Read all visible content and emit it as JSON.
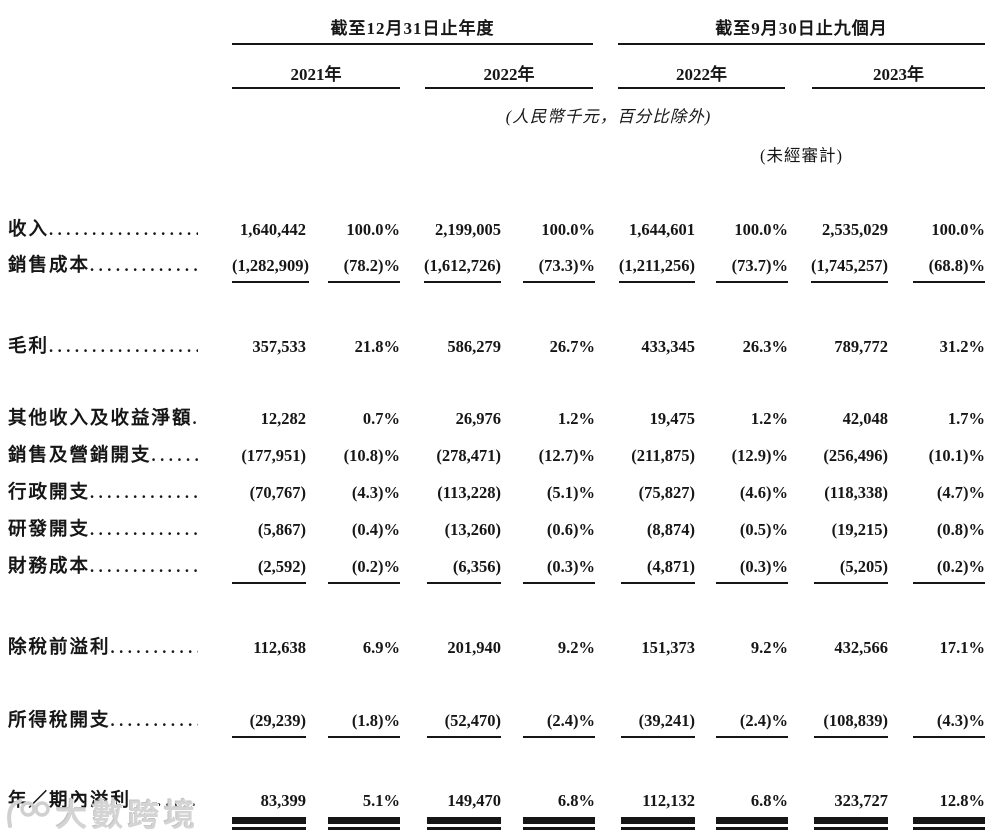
{
  "header": {
    "period_groups": [
      {
        "title": "截至12月31日止年度",
        "years": [
          "2021年",
          "2022年"
        ]
      },
      {
        "title": "截至9月30日止九個月",
        "years": [
          "2022年",
          "2023年"
        ]
      }
    ],
    "unit_note": "(人民幣千元，百分比除外)",
    "unaudited_note": "(未經審計)"
  },
  "table": {
    "leader_dots": "..........................................................",
    "rows": [
      {
        "label": "收入",
        "rule": "none",
        "values": [
          "1,640,442",
          "100.0%",
          "2,199,005",
          "100.0%",
          "1,644,601",
          "100.0%",
          "2,535,029",
          "100.0%"
        ]
      },
      {
        "label": "銷售成本",
        "rule": "single",
        "values": [
          "(1,282,909)",
          "(78.2)%",
          "(1,612,726)",
          "(73.3)%",
          "(1,211,256)",
          "(73.7)%",
          "(1,745,257)",
          "(68.8)%"
        ]
      },
      {
        "label": "毛利",
        "rule": "none",
        "values": [
          "357,533",
          "21.8%",
          "586,279",
          "26.7%",
          "433,345",
          "26.3%",
          "789,772",
          "31.2%"
        ]
      },
      {
        "label": "其他收入及收益淨額",
        "rule": "none",
        "values": [
          "12,282",
          "0.7%",
          "26,976",
          "1.2%",
          "19,475",
          "1.2%",
          "42,048",
          "1.7%"
        ]
      },
      {
        "label": "銷售及營銷開支",
        "rule": "none",
        "values": [
          "(177,951)",
          "(10.8)%",
          "(278,471)",
          "(12.7)%",
          "(211,875)",
          "(12.9)%",
          "(256,496)",
          "(10.1)%"
        ]
      },
      {
        "label": "行政開支",
        "rule": "none",
        "values": [
          "(70,767)",
          "(4.3)%",
          "(113,228)",
          "(5.1)%",
          "(75,827)",
          "(4.6)%",
          "(118,338)",
          "(4.7)%"
        ]
      },
      {
        "label": "研發開支",
        "rule": "none",
        "values": [
          "(5,867)",
          "(0.4)%",
          "(13,260)",
          "(0.6)%",
          "(8,874)",
          "(0.5)%",
          "(19,215)",
          "(0.8)%"
        ]
      },
      {
        "label": "財務成本",
        "rule": "single",
        "values": [
          "(2,592)",
          "(0.2)%",
          "(6,356)",
          "(0.3)%",
          "(4,871)",
          "(0.3)%",
          "(5,205)",
          "(0.2)%"
        ]
      },
      {
        "label": "除稅前溢利",
        "rule": "none",
        "values": [
          "112,638",
          "6.9%",
          "201,940",
          "9.2%",
          "151,373",
          "9.2%",
          "432,566",
          "17.1%"
        ]
      },
      {
        "label": "所得稅開支",
        "rule": "single",
        "values": [
          "(29,239)",
          "(1.8)%",
          "(52,470)",
          "(2.4)%",
          "(39,241)",
          "(2.4)%",
          "(108,839)",
          "(4.3)%"
        ]
      },
      {
        "label": "年／期內溢利",
        "rule": "double",
        "values": [
          "83,399",
          "5.1%",
          "149,470",
          "6.8%",
          "112,132",
          "6.8%",
          "323,727",
          "12.8%"
        ]
      }
    ]
  },
  "watermark": {
    "text": "大數跨境"
  }
}
